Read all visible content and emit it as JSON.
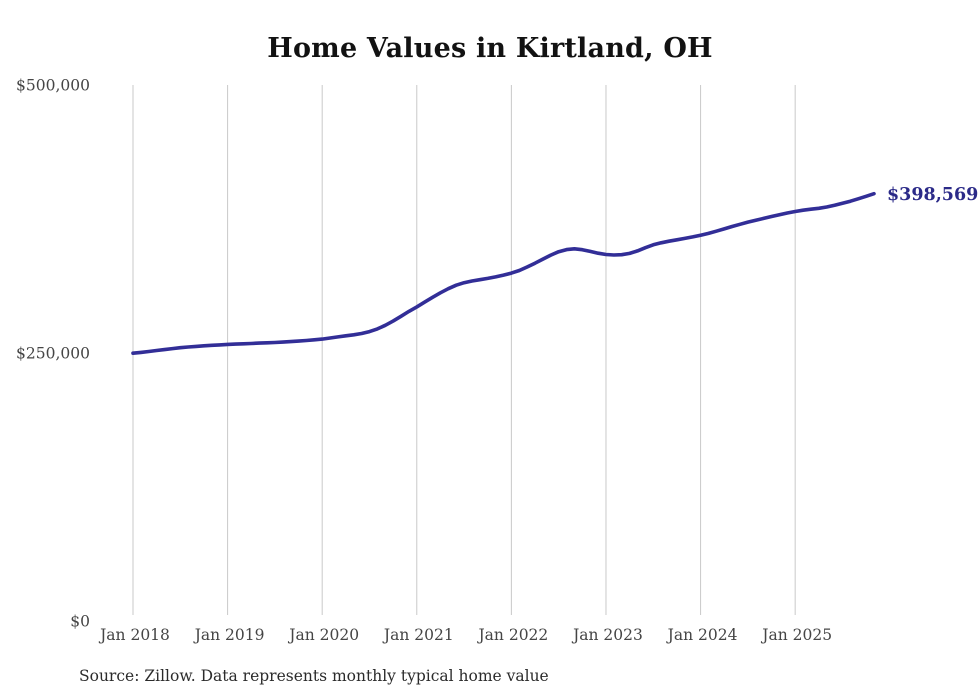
{
  "title": "Home Values in Kirtland, OH",
  "source_note": "Source: Zillow. Data represents monthly typical home value",
  "end_label": "$398,569",
  "colors": {
    "line": "#322e97",
    "end_label": "#2b2a88",
    "grid": "#c9c9c9",
    "axis_text": "#454545",
    "title_text": "#121212"
  },
  "chart_data": {
    "type": "line",
    "title": "Home Values in Kirtland, OH",
    "xlabel": "",
    "ylabel": "",
    "x_unit": "month",
    "x_range": [
      "Jan 2018",
      "Nov 2025"
    ],
    "ylim": [
      0,
      500000
    ],
    "grid": "vertical-only",
    "legend": "none",
    "y_ticks": [
      {
        "label": "$0",
        "value": 0
      },
      {
        "label": "$250,000",
        "value": 250000
      },
      {
        "label": "$500,000",
        "value": 500000
      }
    ],
    "x_ticks": [
      {
        "label": "Jan 2018",
        "month_index": 0
      },
      {
        "label": "Jan 2019",
        "month_index": 12
      },
      {
        "label": "Jan 2020",
        "month_index": 24
      },
      {
        "label": "Jan 2021",
        "month_index": 36
      },
      {
        "label": "Jan 2022",
        "month_index": 48
      },
      {
        "label": "Jan 2023",
        "month_index": 60
      },
      {
        "label": "Jan 2024",
        "month_index": 72
      },
      {
        "label": "Jan 2025",
        "month_index": 84
      }
    ],
    "series": [
      {
        "name": "Monthly typical home value",
        "values": [
          249800,
          250600,
          251400,
          252300,
          253200,
          254100,
          254900,
          255600,
          256200,
          256700,
          257200,
          257600,
          258000,
          258300,
          258600,
          258900,
          259200,
          259500,
          259800,
          260200,
          260600,
          261100,
          261700,
          262300,
          263000,
          264000,
          265000,
          266000,
          267000,
          268200,
          270000,
          272500,
          275800,
          279800,
          284200,
          288800,
          293000,
          297500,
          302000,
          306200,
          310000,
          313200,
          315600,
          317200,
          318400,
          319600,
          321000,
          322700,
          324500,
          327000,
          330200,
          333800,
          337600,
          341300,
          344500,
          346500,
          347200,
          346400,
          344800,
          343100,
          341900,
          341400,
          341700,
          342900,
          345200,
          348200,
          350900,
          352800,
          354300,
          355600,
          356900,
          358300,
          359900,
          361600,
          363600,
          365800,
          368000,
          370100,
          372100,
          373900,
          375600,
          377300,
          379000,
          380600,
          382000,
          383200,
          384100,
          385000,
          386200,
          387800,
          389600,
          391600,
          393800,
          396200,
          398569
        ]
      }
    ],
    "end_value": 398569
  }
}
